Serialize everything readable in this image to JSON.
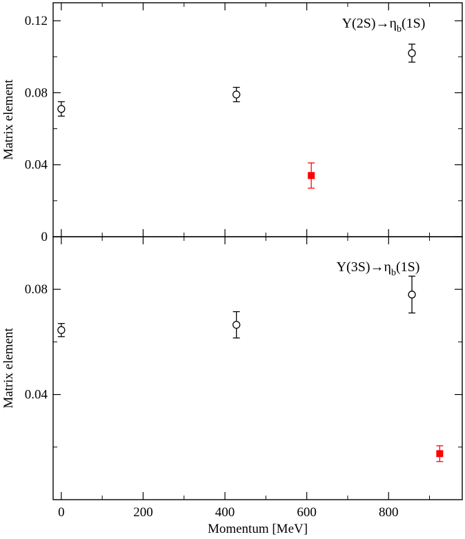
{
  "chart_data": [
    {
      "type": "scatter",
      "xlabel": "",
      "ylabel": "Matrix element",
      "xlim": [
        -20,
        980
      ],
      "ylim": [
        0,
        0.13
      ],
      "yticks": [
        0,
        0.04,
        0.08,
        0.12
      ],
      "ytick_labels": [
        "0",
        "0.04",
        "0.08",
        "0.12"
      ],
      "grid": false,
      "annotation": {
        "prefix": "Υ(2S)→η",
        "sub": "b",
        "suffix": "(1S)"
      },
      "series": [
        {
          "color": "#000000",
          "marker": "open-circle",
          "points": [
            {
              "x": 0,
              "y": 0.071,
              "err": 0.004
            },
            {
              "x": 428,
              "y": 0.079,
              "err": 0.004
            },
            {
              "x": 857,
              "y": 0.102,
              "err": 0.005
            }
          ]
        },
        {
          "color": "#ff0000",
          "marker": "filled-square",
          "points": [
            {
              "x": 611,
              "y": 0.034,
              "err": 0.007
            }
          ]
        }
      ]
    },
    {
      "type": "scatter",
      "xlabel": "Momentum [MeV]",
      "ylabel": "Matrix element",
      "xlim": [
        -20,
        980
      ],
      "ylim": [
        0.0,
        0.1
      ],
      "xticks": [
        0,
        200,
        400,
        600,
        800
      ],
      "xtick_labels": [
        "0",
        "200",
        "400",
        "600",
        "800"
      ],
      "yticks": [
        0.04,
        0.08
      ],
      "ytick_labels": [
        "0.04",
        "0.08"
      ],
      "grid": false,
      "annotation": {
        "prefix": "Υ(3S)→η",
        "sub": "b",
        "suffix": "(1S)"
      },
      "series": [
        {
          "color": "#000000",
          "marker": "open-circle",
          "points": [
            {
              "x": 0,
              "y": 0.0645,
              "err": 0.0025
            },
            {
              "x": 428,
              "y": 0.0665,
              "err": 0.005
            },
            {
              "x": 857,
              "y": 0.078,
              "err": 0.007
            }
          ]
        },
        {
          "color": "#ff0000",
          "marker": "filled-square",
          "points": [
            {
              "x": 925,
              "y": 0.0175,
              "err": 0.003
            }
          ]
        }
      ]
    }
  ]
}
